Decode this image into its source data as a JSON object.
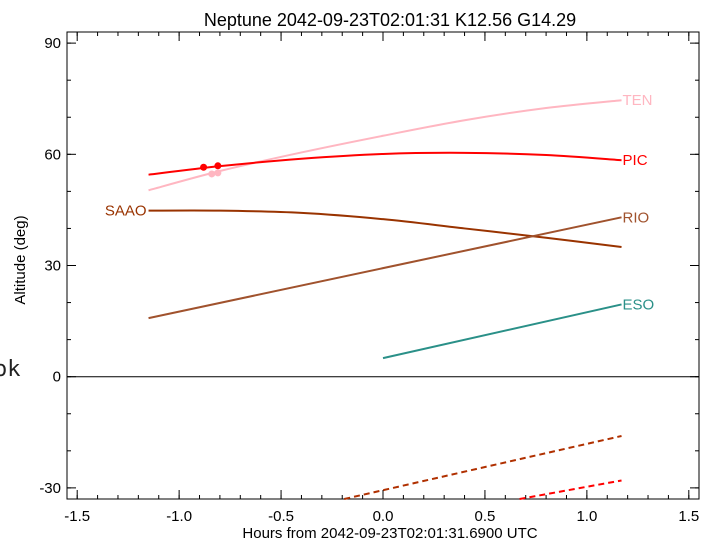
{
  "chart_data": {
    "type": "line",
    "title": "Neptune 2042-09-23T02:01:31  K12.56  G14.29",
    "xlabel": "Hours from 2042-09-23T02:01:31.6900 UTC",
    "ylabel": "Altitude (deg)",
    "xlim": [
      -1.55,
      1.55
    ],
    "ylim": [
      -33,
      93
    ],
    "xticks": [
      "-1.5",
      "-1.0",
      "-0.5",
      "0.0",
      "0.5",
      "1.0",
      "1.5"
    ],
    "yticks": [
      "-30",
      "0",
      "30",
      "60",
      "90"
    ],
    "side_text": "ok",
    "grid": false,
    "zero_line": true,
    "series": [
      {
        "name": "TEN",
        "color": "#ffb6c1",
        "style": "solid",
        "x": [
          -1.15,
          -0.8,
          -0.4,
          0.0,
          0.4,
          0.8,
          1.17
        ],
        "y": [
          50.3,
          55.5,
          60.5,
          65.0,
          69.2,
          72.5,
          74.6
        ]
      },
      {
        "name": "PIC",
        "color": "#ff0000",
        "style": "solid",
        "x": [
          -1.15,
          -0.8,
          -0.4,
          0.0,
          0.4,
          0.8,
          1.17
        ],
        "y": [
          54.5,
          56.8,
          58.8,
          60.1,
          60.4,
          59.8,
          58.4
        ]
      },
      {
        "name": "SAAO",
        "color": "#993300",
        "style": "solid",
        "label_side": "left",
        "x": [
          -1.15,
          -0.8,
          -0.4,
          0.0,
          0.4,
          0.8,
          1.17
        ],
        "y": [
          44.8,
          44.8,
          44.2,
          42.5,
          40.0,
          37.5,
          35.0
        ]
      },
      {
        "name": "RIO",
        "color": "#a0522d",
        "style": "solid",
        "x": [
          -1.15,
          1.17
        ],
        "y": [
          15.8,
          43.0
        ]
      },
      {
        "name": "ESO",
        "color": "#2a9088",
        "style": "solid",
        "x": [
          0.0,
          1.17
        ],
        "y": [
          5.0,
          19.5
        ]
      },
      {
        "name": "",
        "color": "#b03000",
        "style": "dashed",
        "x": [
          -0.19,
          1.17
        ],
        "y": [
          -33.0,
          -16.0
        ]
      },
      {
        "name": "",
        "color": "#ff0000",
        "style": "dashed",
        "x": [
          0.67,
          1.17
        ],
        "y": [
          -33.0,
          -28.0
        ]
      }
    ],
    "markers": [
      {
        "x": -0.88,
        "y": 56.5,
        "color": "#ff0000"
      },
      {
        "x": -0.81,
        "y": 56.9,
        "color": "#ff0000"
      },
      {
        "x": -0.84,
        "y": 54.7,
        "color": "#ffb6c1"
      },
      {
        "x": -0.81,
        "y": 55.0,
        "color": "#ffb6c1"
      }
    ]
  }
}
